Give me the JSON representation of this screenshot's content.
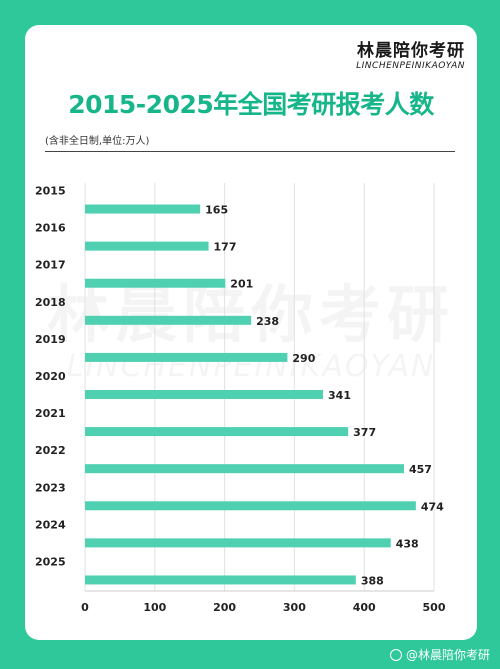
{
  "brand": {
    "name_cn": "林晨陪你考研",
    "name_en": "LINCHENPEINIKAOYAN"
  },
  "note": "(含非全日制,单位:万人)",
  "footer": {
    "text": "@林晨陪你考研"
  },
  "colors": {
    "background": "#2fc89a",
    "bar": "#4fd1b1",
    "title": "#16b68a"
  },
  "chart_data": {
    "type": "bar",
    "orientation": "horizontal",
    "title": "2015-2025年全国考研报考人数",
    "categories": [
      "2015",
      "2016",
      "2017",
      "2018",
      "2019",
      "2020",
      "2021",
      "2022",
      "2023",
      "2024",
      "2025"
    ],
    "values": [
      165,
      177,
      201,
      238,
      290,
      341,
      377,
      457,
      474,
      438,
      388
    ],
    "xlim": [
      0,
      500
    ],
    "xticks": [
      0,
      100,
      200,
      300,
      400,
      500
    ],
    "grid": true
  }
}
